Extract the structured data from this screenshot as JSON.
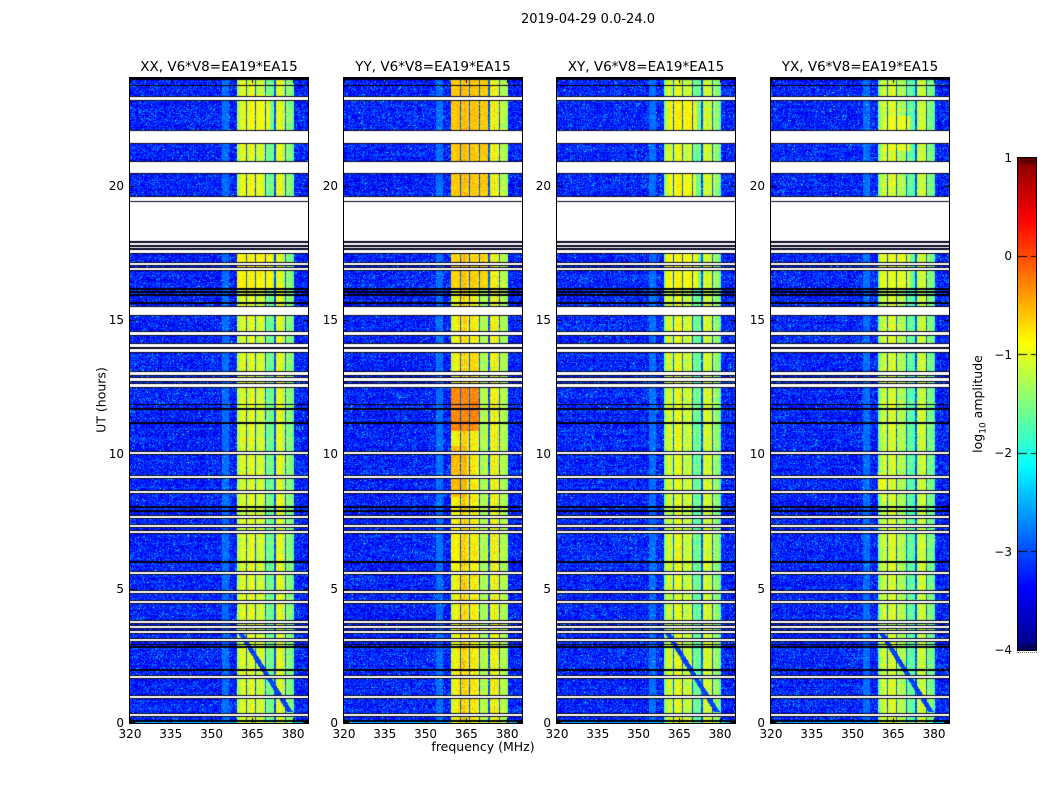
{
  "chart_data": {
    "type": "heatmap",
    "title": "2019-04-29 0.0-24.0",
    "xlabel": "frequency (MHz)",
    "ylabel": "UT (hours)",
    "x_ticks": [
      320,
      335,
      350,
      365,
      380
    ],
    "y_ticks": [
      0,
      5,
      10,
      15,
      20
    ],
    "xlim": [
      320,
      385.5
    ],
    "ylim": [
      0,
      24
    ],
    "grid": false,
    "colormap": "jet",
    "colorbar": {
      "label": "log10 amplitude",
      "label_prefix": "log",
      "label_sub": "10",
      "label_suffix": " amplitude",
      "ticks": [
        "1",
        "0",
        "−1",
        "−2",
        "−3",
        "−4"
      ],
      "tick_values": [
        1,
        0,
        -1,
        -2,
        -3,
        -4
      ],
      "vmin": -4,
      "vmax": 1
    },
    "background_level": -3.3,
    "rfi_band": {
      "f0": 359.5,
      "f1": 380.2,
      "separators": [
        362.9,
        366.1,
        369.8,
        373.4,
        377.3
      ],
      "separator_halfwidth": 0.27,
      "stripe_offsets": [
        0.12,
        0.2,
        0.08,
        -0.35,
        0.08,
        -0.15
      ],
      "pre_band": [
        354.0,
        356.5,
        -2.85
      ]
    },
    "missing_data_gaps_ut": [
      [
        23.18,
        23.3
      ],
      [
        21.57,
        22.03
      ],
      [
        20.47,
        20.88
      ],
      [
        19.42,
        19.56
      ],
      [
        17.95,
        19.37
      ],
      [
        17.78,
        17.86
      ],
      [
        17.66,
        17.73
      ],
      [
        17.5,
        17.61
      ],
      [
        17.05,
        17.12
      ],
      [
        16.86,
        16.93
      ],
      [
        15.18,
        15.48
      ]
    ],
    "thin_white_lines_ut": [
      14.5,
      14.05,
      13.85,
      13.0,
      12.78,
      12.55,
      10.05,
      9.15,
      8.6,
      7.66,
      7.33,
      7.11,
      5.58,
      4.87,
      4.5,
      3.76,
      3.57,
      3.39,
      3.09,
      1.71,
      0.97,
      0.3
    ],
    "dark_lines_ut": [
      23.95,
      23.72,
      16.16,
      16.04,
      15.92,
      15.63,
      15.35,
      11.85,
      11.7,
      11.17,
      8.05,
      7.9,
      5.99,
      2.92,
      2.82,
      1.98,
      0.06
    ],
    "bottom_bright_row_ut": 0.12,
    "streak": {
      "ut0": 0.4,
      "ut1": 3.3,
      "f_at_top": 361,
      "slope_mhz_per_hour": 6.2,
      "halfwidth": 1.0
    },
    "panels": [
      {
        "key": "xx",
        "label": "XX, V6*V8=EA19*EA15",
        "seed": 11,
        "band_base": -1.18,
        "streak": true,
        "hotspots": [
          [
            16.2,
            17.5,
            359.5,
            372.5,
            -0.85
          ],
          [
            21.6,
            23.35,
            362,
            371.5,
            -0.95
          ],
          [
            19.6,
            20.45,
            361,
            369,
            -1.05
          ]
        ]
      },
      {
        "key": "yy",
        "label": "YY, V6*V8=EA19*EA15",
        "seed": 22,
        "band_base": -0.95,
        "streak": false,
        "hotspots": [
          [
            19.5,
            23.95,
            359.5,
            373.5,
            -0.62
          ],
          [
            10.85,
            12.45,
            359.5,
            369.6,
            -0.3
          ],
          [
            8.4,
            10.3,
            359.5,
            365.4,
            -0.55
          ],
          [
            12.45,
            14.1,
            365.8,
            369.6,
            -0.72
          ],
          [
            16.2,
            17.5,
            359.5,
            373.5,
            -0.68
          ],
          [
            5.5,
            8.4,
            359.5,
            362.8,
            -0.95
          ]
        ]
      },
      {
        "key": "xy",
        "label": "XY, V6*V8=EA19*EA15",
        "seed": 33,
        "band_base": -1.2,
        "streak": true,
        "hotspots": [
          [
            22.0,
            23.3,
            361,
            371.5,
            -0.85
          ],
          [
            19.6,
            20.9,
            361,
            371,
            -0.95
          ],
          [
            16.2,
            17.5,
            360,
            372,
            -0.92
          ]
        ]
      },
      {
        "key": "yx",
        "label": "YX, V6*V8=EA19*EA15",
        "seed": 44,
        "band_base": -1.3,
        "streak": true,
        "hotspots": [
          [
            21.3,
            22.6,
            362,
            371,
            -1.0
          ],
          [
            8.5,
            9.3,
            359.5,
            362.5,
            -1.0
          ],
          [
            16.2,
            17.5,
            360,
            371,
            -1.05
          ]
        ]
      }
    ]
  }
}
